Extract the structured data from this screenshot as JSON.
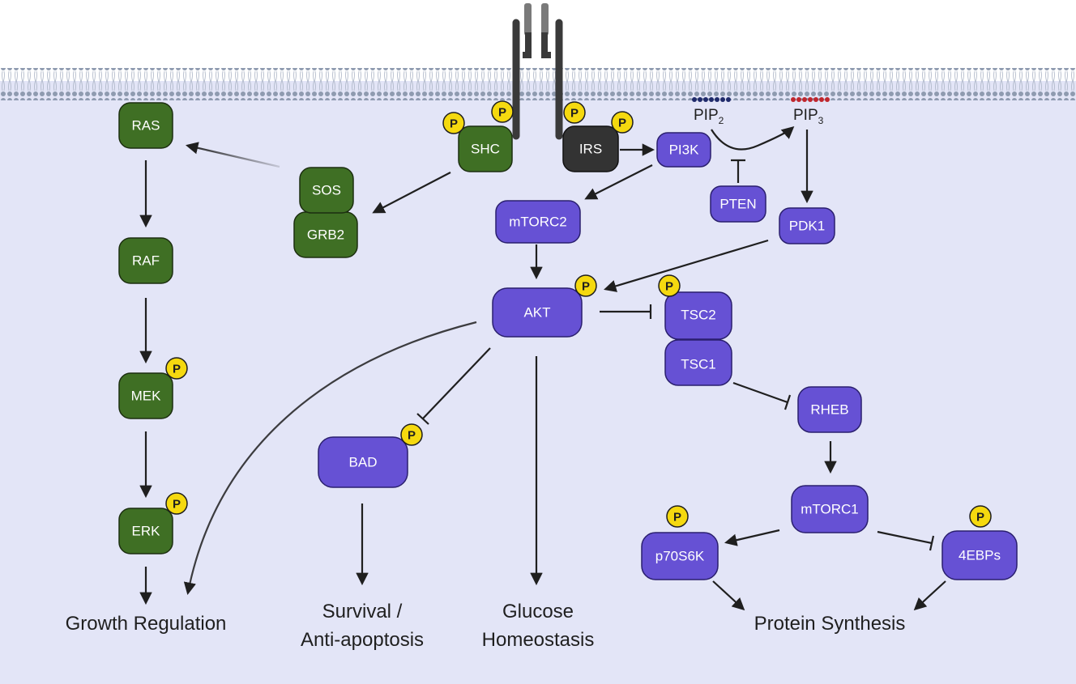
{
  "colors": {
    "cytoplasm": "#e3e5f7",
    "membrane": "#8f9bb0",
    "green_node": "#3f6f24",
    "purple_node": "#6651d4",
    "dark_node": "#333333",
    "phospho": "#f5d90f",
    "arrow": "#1f1f1f"
  },
  "phospho_label": "P",
  "nodes": {
    "ras": "RAS",
    "raf": "RAF",
    "mek": "MEK",
    "erk": "ERK",
    "sos": "SOS",
    "grb2": "GRB2",
    "shc": "SHC",
    "irs": "IRS",
    "pi3k": "PI3K",
    "pten": "PTEN",
    "mtorc2": "mTORC2",
    "pdk1": "PDK1",
    "akt": "AKT",
    "tsc2": "TSC2",
    "tsc1": "TSC1",
    "rheb": "RHEB",
    "bad": "BAD",
    "mtorc1": "mTORC1",
    "p70s6k": "p70S6K",
    "ebps": "4EBPs"
  },
  "lipids": {
    "pip2_base": "PIP",
    "pip2_sub": "2",
    "pip3_base": "PIP",
    "pip3_sub": "3"
  },
  "outcomes": {
    "growth": "Growth Regulation",
    "survival_line1": "Survival /",
    "survival_line2": "Anti-apoptosis",
    "glucose_line1": "Glucose",
    "glucose_line2": "Homeostasis",
    "protein": "Protein Synthesis"
  }
}
